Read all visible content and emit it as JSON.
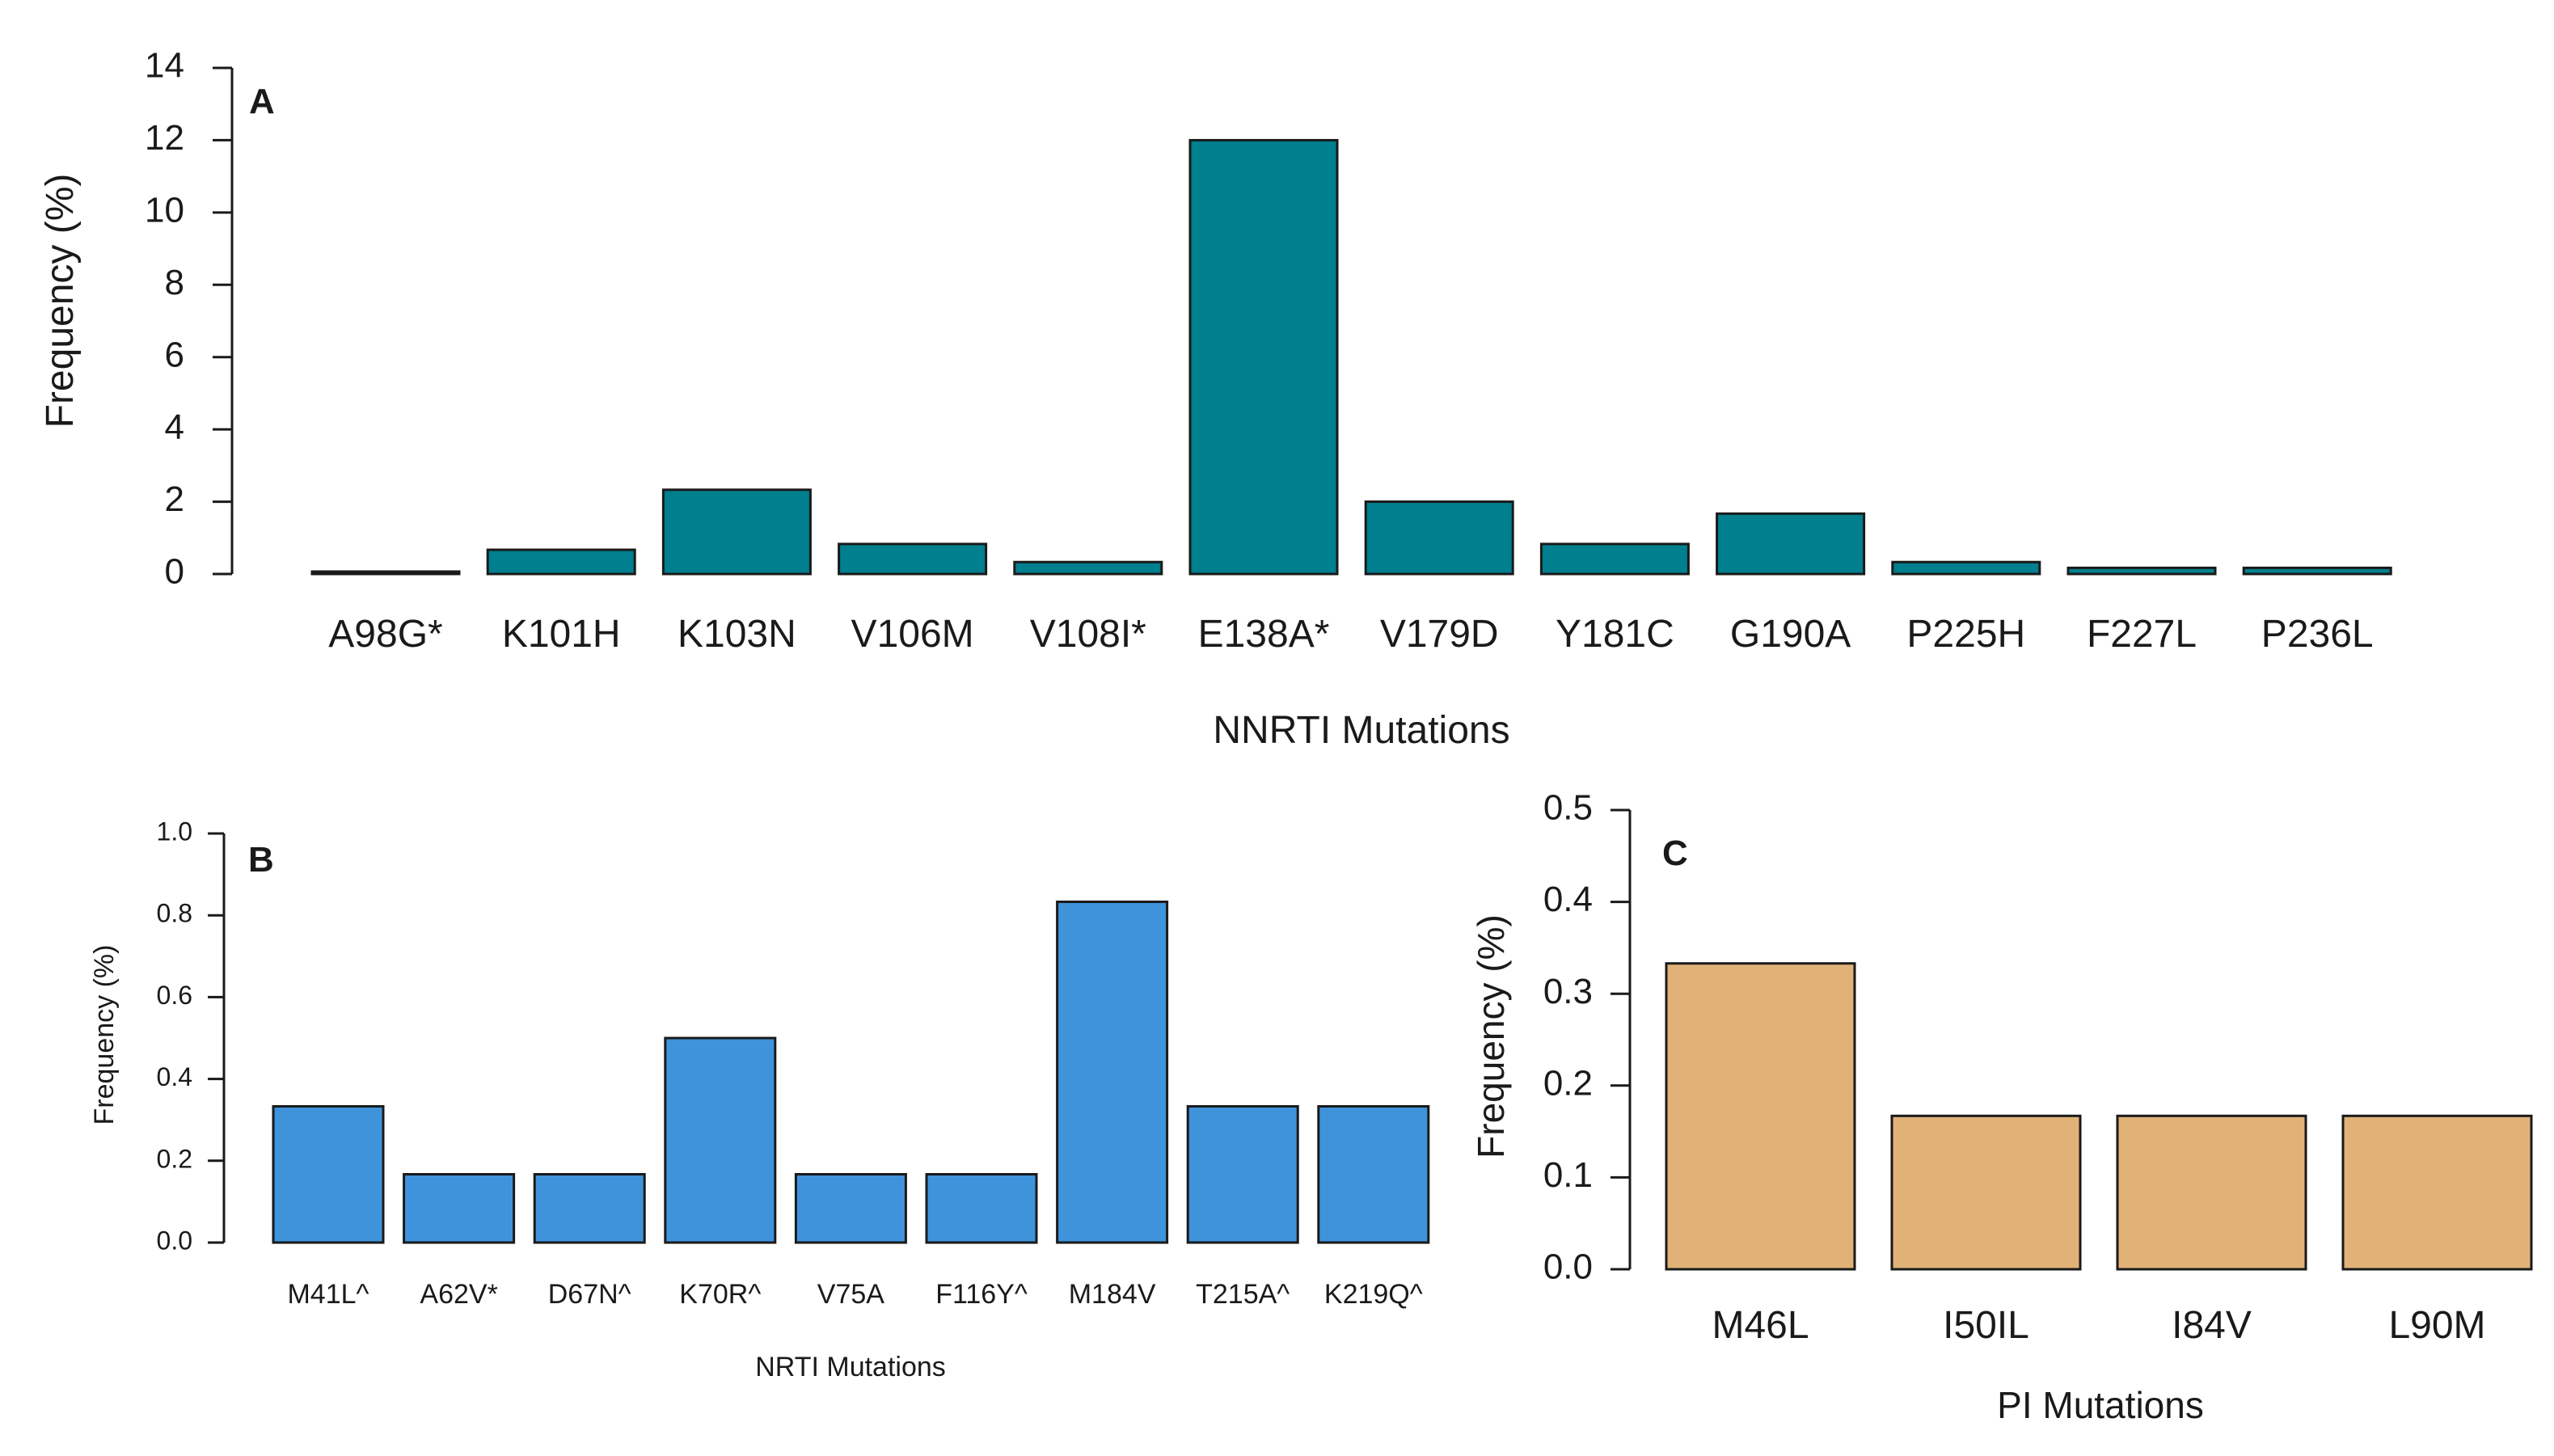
{
  "chart_data": [
    {
      "panel": "A",
      "type": "bar",
      "title": "",
      "xlabel": "NNRTI Mutations",
      "ylabel": "Frequency (%)",
      "ylim": [
        0,
        14
      ],
      "yticks": [
        "0",
        "2",
        "4",
        "6",
        "8",
        "10",
        "12",
        "14"
      ],
      "categories": [
        "A98G*",
        "K101H",
        "K103N",
        "V106M",
        "V108I*",
        "E138A*",
        "V179D",
        "Y181C",
        "G190A",
        "P225H",
        "F227L",
        "P236L"
      ],
      "values": [
        0.05,
        0.67,
        2.33,
        0.83,
        0.33,
        12.0,
        2.0,
        0.83,
        1.67,
        0.33,
        0.17,
        0.17
      ],
      "color": "#007f8e"
    },
    {
      "panel": "B",
      "type": "bar",
      "title": "",
      "xlabel": "NRTI Mutations",
      "ylabel": "Frequency (%)",
      "ylim": [
        0,
        1.0
      ],
      "yticks": [
        "0.0",
        "0.2",
        "0.4",
        "0.6",
        "0.8",
        "1.0"
      ],
      "categories": [
        "M41L^",
        "A62V*",
        "D67N^",
        "K70R^",
        "V75A",
        "F116Y^",
        "M184V",
        "T215A^",
        "K219Q^"
      ],
      "values": [
        0.333,
        0.167,
        0.167,
        0.5,
        0.167,
        0.167,
        0.833,
        0.333,
        0.333
      ],
      "color": "#3f93db"
    },
    {
      "panel": "C",
      "type": "bar",
      "title": "",
      "xlabel": "PI Mutations",
      "ylabel": "Frequency (%)",
      "ylim": [
        0,
        0.5
      ],
      "yticks": [
        "0.0",
        "0.1",
        "0.2",
        "0.3",
        "0.4",
        "0.5"
      ],
      "categories": [
        "M46L",
        "I50IL",
        "I84V",
        "L90M"
      ],
      "values": [
        0.333,
        0.167,
        0.167,
        0.167
      ],
      "color": "#e1b277"
    }
  ]
}
